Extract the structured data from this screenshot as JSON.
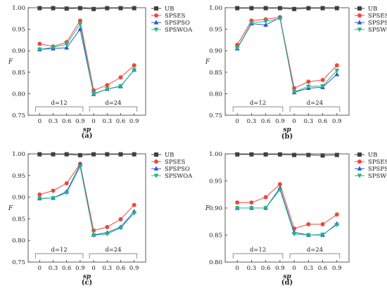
{
  "chart_data": [
    {
      "type": "line",
      "panel_label": "(a)",
      "ylabel": "F",
      "xlabel": "sp",
      "ylim": [
        0.75,
        1.0
      ],
      "yticks": [
        "0.75",
        "0.80",
        "0.85",
        "0.90",
        "0.95",
        "1.00"
      ],
      "xticks": [
        "0",
        "0.3",
        "0.6",
        "0.9",
        "0",
        "0.3",
        "0.6",
        "0.9"
      ],
      "groups": [
        "d=12",
        "d=24"
      ],
      "series": [
        {
          "name": "UB",
          "color": "#404040",
          "marker": "square",
          "values": [
            0.999,
            0.999,
            0.998,
            0.999,
            0.997,
            0.999,
            0.999,
            0.999
          ]
        },
        {
          "name": "SPSES",
          "color": "#f0473d",
          "marker": "circle",
          "values": [
            0.916,
            0.91,
            0.92,
            0.97,
            0.808,
            0.82,
            0.838,
            0.866
          ]
        },
        {
          "name": "SPSPSO",
          "color": "#2b57d6",
          "marker": "triangle-up",
          "values": [
            0.903,
            0.905,
            0.907,
            0.95,
            0.799,
            0.811,
            0.817,
            0.856
          ]
        },
        {
          "name": "SPSWOA",
          "color": "#22b584",
          "marker": "triangle-down",
          "values": [
            0.903,
            0.908,
            0.915,
            0.962,
            0.8,
            0.811,
            0.818,
            0.855
          ]
        }
      ]
    },
    {
      "type": "line",
      "panel_label": "(b)",
      "ylabel": "F",
      "xlabel": "sp",
      "ylim": [
        0.75,
        1.0
      ],
      "yticks": [
        "0.75",
        "0.80",
        "0.85",
        "0.90",
        "0.95",
        "1.00"
      ],
      "xticks": [
        "0",
        "0.3",
        "0.6",
        "0.9",
        "0",
        "0.3",
        "0.6",
        "0.9"
      ],
      "groups": [
        "d=12",
        "d=24"
      ],
      "series": [
        {
          "name": "UB",
          "color": "#404040",
          "marker": "square",
          "values": [
            0.999,
            0.999,
            0.999,
            0.999,
            0.997,
            0.999,
            0.999,
            0.999
          ]
        },
        {
          "name": "SPSES",
          "color": "#f0473d",
          "marker": "circle",
          "values": [
            0.914,
            0.97,
            0.973,
            0.978,
            0.813,
            0.828,
            0.832,
            0.866
          ]
        },
        {
          "name": "SPSPSO",
          "color": "#2b57d6",
          "marker": "triangle-up",
          "values": [
            0.905,
            0.963,
            0.96,
            0.977,
            0.803,
            0.813,
            0.815,
            0.845
          ]
        },
        {
          "name": "SPSWOA",
          "color": "#22b584",
          "marker": "triangle-down",
          "values": [
            0.906,
            0.965,
            0.968,
            0.975,
            0.804,
            0.817,
            0.818,
            0.854
          ]
        }
      ]
    },
    {
      "type": "line",
      "panel_label": "(c)",
      "ylabel": "F",
      "xlabel": "sp",
      "ylim": [
        0.75,
        1.0
      ],
      "yticks": [
        "0.75",
        "0.80",
        "0.85",
        "0.90",
        "0.95",
        "1.00"
      ],
      "xticks": [
        "0",
        "0.3",
        "0.6",
        "0.9",
        "0",
        "0.3",
        "0.6",
        "0.9"
      ],
      "groups": [
        "d=12",
        "d=24"
      ],
      "series": [
        {
          "name": "UB",
          "color": "#404040",
          "marker": "square",
          "values": [
            0.999,
            0.999,
            0.999,
            0.997,
            0.999,
            0.999,
            0.999,
            0.999
          ]
        },
        {
          "name": "SPSES",
          "color": "#f0473d",
          "marker": "circle",
          "values": [
            0.906,
            0.915,
            0.932,
            0.977,
            0.823,
            0.831,
            0.849,
            0.882
          ]
        },
        {
          "name": "SPSPSO",
          "color": "#2b57d6",
          "marker": "triangle-up",
          "values": [
            0.897,
            0.898,
            0.913,
            0.975,
            0.813,
            0.818,
            0.831,
            0.867
          ]
        },
        {
          "name": "SPSWOA",
          "color": "#22b584",
          "marker": "triangle-down",
          "values": [
            0.897,
            0.898,
            0.91,
            0.971,
            0.812,
            0.815,
            0.829,
            0.863
          ]
        }
      ]
    },
    {
      "type": "line",
      "panel_label": "(d)",
      "ylabel": "F",
      "xlabel": "sp",
      "ylim": [
        0.8,
        1.0
      ],
      "yticks": [
        "0.80",
        "0.85",
        "0.90",
        "0.95",
        "1.00"
      ],
      "xticks": [
        "0",
        "0.3",
        "0.6",
        "0.9",
        "0",
        "0.3",
        "0.6",
        "0.9"
      ],
      "groups": [
        "d=12",
        "d=24"
      ],
      "series": [
        {
          "name": "UB",
          "color": "#404040",
          "marker": "square",
          "values": [
            0.999,
            0.999,
            0.999,
            0.999,
            0.998,
            0.998,
            0.997,
            0.998
          ]
        },
        {
          "name": "SPSES",
          "color": "#f0473d",
          "marker": "circle",
          "values": [
            0.91,
            0.91,
            0.92,
            0.944,
            0.862,
            0.87,
            0.87,
            0.888
          ]
        },
        {
          "name": "SPSPSO",
          "color": "#2b57d6",
          "marker": "triangle-up",
          "values": [
            0.9,
            0.9,
            0.9,
            0.937,
            0.855,
            0.85,
            0.85,
            0.871
          ]
        },
        {
          "name": "SPSWOA",
          "color": "#22b584",
          "marker": "triangle-down",
          "values": [
            0.9,
            0.9,
            0.9,
            0.934,
            0.852,
            0.85,
            0.851,
            0.869
          ]
        }
      ]
    }
  ]
}
